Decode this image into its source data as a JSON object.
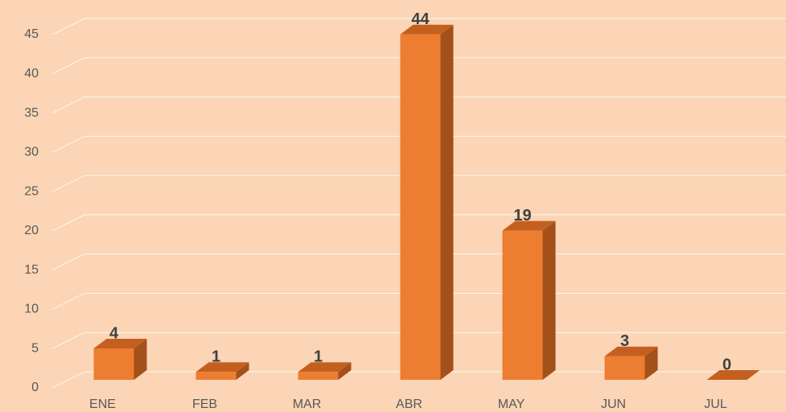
{
  "chart_data": {
    "type": "bar3d",
    "categories": [
      "ENE",
      "FEB",
      "MAR",
      "ABR",
      "MAY",
      "JUN",
      "JUL"
    ],
    "values": [
      4,
      1,
      1,
      44,
      19,
      3,
      0
    ],
    "color": "#ed7d31",
    "ylim": [
      0,
      45
    ],
    "yticks": [
      0,
      5,
      10,
      15,
      20,
      25,
      30,
      35,
      40,
      45
    ],
    "grid": true
  }
}
